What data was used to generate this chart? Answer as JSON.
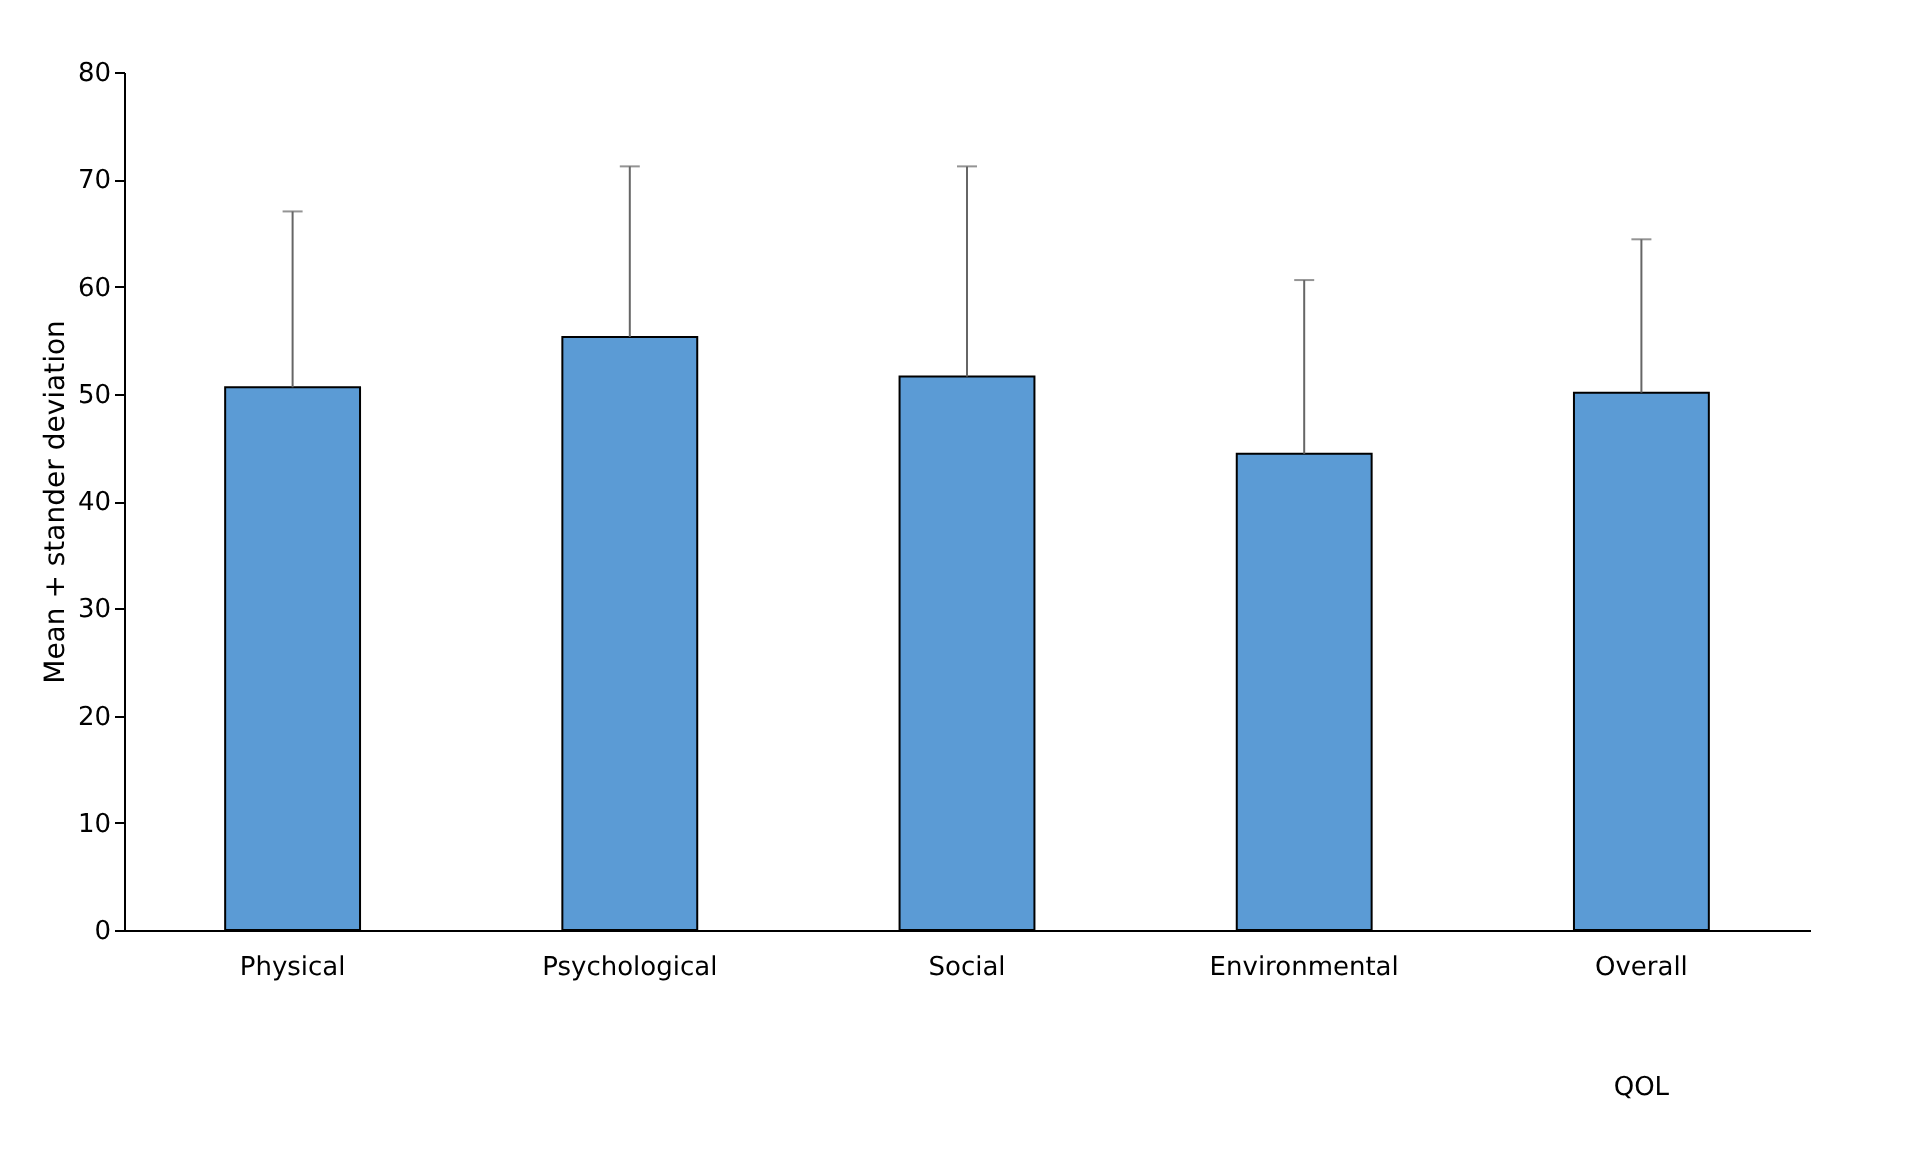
{
  "chart_data": {
    "type": "bar",
    "ylabel": "Mean + stander deviation",
    "categories": [
      "Physical",
      "Psychological",
      "Social",
      "Environmental",
      "Overall QOL"
    ],
    "values": [
      50.6,
      55.3,
      51.6,
      44.4,
      50.1
    ],
    "errors": [
      [
        50.6,
        67.0
      ],
      [
        55.3,
        71.2
      ],
      [
        51.6,
        71.2
      ],
      [
        44.4,
        60.6
      ],
      [
        50.1,
        64.4
      ]
    ],
    "color": "#5b9bd5",
    "ylim": [
      0,
      80
    ],
    "yticks": [
      0,
      10,
      20,
      30,
      40,
      50,
      60,
      70,
      80
    ],
    "grid": false
  }
}
